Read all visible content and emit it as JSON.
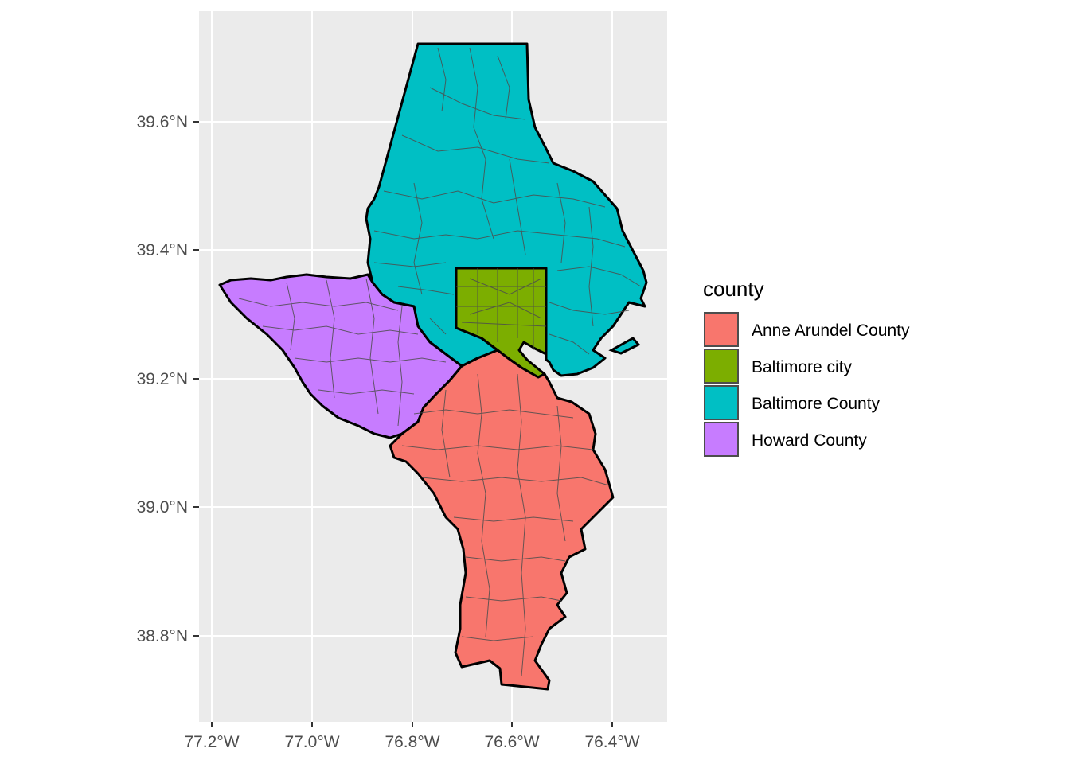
{
  "chart_data": {
    "type": "map",
    "x_axis": {
      "ticks": [
        "77.2°W",
        "77.0°W",
        "76.8°W",
        "76.6°W",
        "76.4°W"
      ],
      "values": [
        -77.2,
        -77.0,
        -76.8,
        -76.6,
        -76.4
      ],
      "range": [
        -77.22,
        -76.31
      ]
    },
    "y_axis": {
      "ticks": [
        "38.8°N",
        "39.0°N",
        "39.2°N",
        "39.4°N",
        "39.6°N"
      ],
      "values": [
        38.8,
        39.0,
        39.2,
        39.4,
        39.6
      ],
      "range": [
        38.69,
        39.74
      ]
    },
    "grid": true,
    "legend": {
      "title": "county",
      "placement": "right",
      "entries": [
        {
          "name": "Anne Arundel County",
          "color": "#F8766D"
        },
        {
          "name": "Baltimore city",
          "color": "#7CAE00"
        },
        {
          "name": "Baltimore County",
          "color": "#00BFC4"
        },
        {
          "name": "Howard County",
          "color": "#C77CFF"
        }
      ]
    },
    "regions": [
      "Anne Arundel County",
      "Baltimore city",
      "Baltimore County",
      "Howard County"
    ]
  },
  "colors": {
    "panel_background": "#EBEBEB",
    "gridline": "#FFFFFF",
    "county_border": "#000000",
    "tract_border": "#4D4D4D"
  }
}
